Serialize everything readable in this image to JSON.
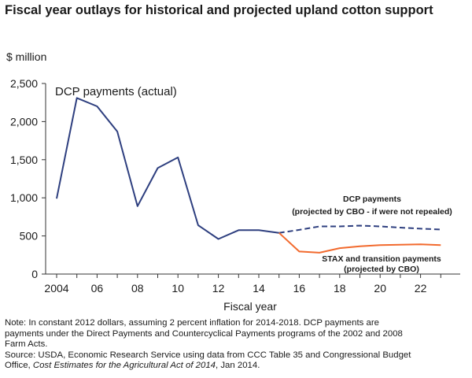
{
  "title": "Fiscal year outlays for historical and projected upland cotton support",
  "unit_label": "$ million",
  "note": {
    "line1": "Note: In constant 2012 dollars, assuming 2 percent inflation for 2014-2018. DCP payments are",
    "line2": "payments under the Direct Payments and Countercyclical Payments programs of the 2002 and 2008",
    "line3": "Farm Acts.",
    "line4": "Source: USDA, Economic Research Service using data from CCC Table 35 and Congressional Budget",
    "line5_prefix": "Office, ",
    "line5_italic": "Cost Estimates for the Agricultural Act of 2014",
    "line5_suffix": ", Jan 2014."
  },
  "chart_data": {
    "type": "line",
    "title": "Fiscal year outlays for historical and projected upland cotton support",
    "xlabel": "Fiscal year",
    "ylabel": "$ million",
    "xlim": [
      2004,
      2023
    ],
    "ylim": [
      0,
      2500
    ],
    "x_ticks": [
      2004,
      2006,
      2008,
      2010,
      2012,
      2014,
      2016,
      2018,
      2020,
      2022
    ],
    "x_tick_labels": [
      "2004",
      "06",
      "08",
      "10",
      "12",
      "14",
      "16",
      "18",
      "20",
      "22"
    ],
    "y_ticks": [
      0,
      500,
      1000,
      1500,
      2000,
      2500
    ],
    "y_tick_labels": [
      "0",
      "500",
      "1,000",
      "1,500",
      "2,000",
      "2,500"
    ],
    "grid": false,
    "series": [
      {
        "name": "DCP payments (actual)",
        "color": "#2e3f7f",
        "style": "solid",
        "points": [
          [
            2004,
            990
          ],
          [
            2005,
            2310
          ],
          [
            2006,
            2200
          ],
          [
            2007,
            1870
          ],
          [
            2008,
            890
          ],
          [
            2009,
            1390
          ],
          [
            2010,
            1530
          ],
          [
            2011,
            640
          ],
          [
            2012,
            460
          ],
          [
            2013,
            575
          ],
          [
            2014,
            575
          ],
          [
            2015,
            540
          ]
        ]
      },
      {
        "name": "DCP payments (projected by CBO - if were not repealed)",
        "label_line1": "DCP payments",
        "label_line2": "(projected by CBO - if were not repealed)",
        "color": "#2e3f7f",
        "style": "dashed",
        "points": [
          [
            2015,
            540
          ],
          [
            2016,
            580
          ],
          [
            2017,
            625
          ],
          [
            2018,
            625
          ],
          [
            2019,
            635
          ],
          [
            2020,
            625
          ],
          [
            2021,
            610
          ],
          [
            2022,
            595
          ],
          [
            2023,
            585
          ]
        ]
      },
      {
        "name": "STAX and transition payments (projected by CBO)",
        "label_line1": "STAX and transition payments",
        "label_line2": "(projected by CBO)",
        "color": "#f26a2e",
        "style": "solid",
        "points": [
          [
            2015,
            540
          ],
          [
            2016,
            295
          ],
          [
            2017,
            280
          ],
          [
            2018,
            340
          ],
          [
            2019,
            365
          ],
          [
            2020,
            380
          ],
          [
            2021,
            385
          ],
          [
            2022,
            390
          ],
          [
            2023,
            380
          ]
        ]
      }
    ]
  }
}
